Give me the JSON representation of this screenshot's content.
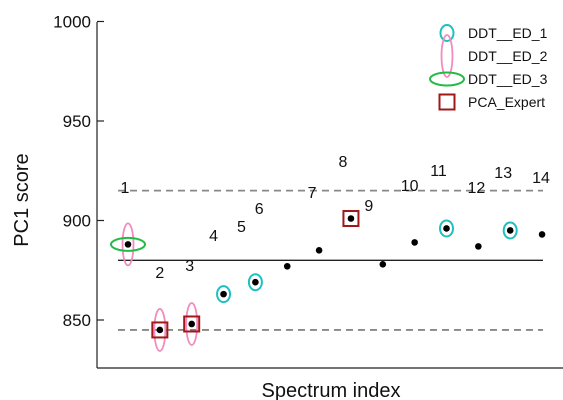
{
  "chart_data": {
    "type": "scatter",
    "xlabel": "Spectrum index",
    "ylabel": "PC1 score",
    "ylim": [
      830,
      1000
    ],
    "y_ticks": [
      "850",
      "900",
      "950",
      "1000"
    ],
    "grid": false,
    "legend_position": "top-right",
    "points": [
      {
        "label": "1",
        "x": 1,
        "y": 888
      },
      {
        "label": "2",
        "x": 2,
        "y": 845
      },
      {
        "label": "3",
        "x": 3,
        "y": 848
      },
      {
        "label": "4",
        "x": 4,
        "y": 863
      },
      {
        "label": "5",
        "x": 5,
        "y": 869
      },
      {
        "label": "6",
        "x": 6,
        "y": 877
      },
      {
        "label": "7",
        "x": 7,
        "y": 885
      },
      {
        "label": "8",
        "x": 8,
        "y": 901
      },
      {
        "label": "9",
        "x": 9,
        "y": 878
      },
      {
        "label": "10",
        "x": 10,
        "y": 889
      },
      {
        "label": "11",
        "x": 11,
        "y": 896
      },
      {
        "label": "12",
        "x": 12,
        "y": 887
      },
      {
        "label": "13",
        "x": 13,
        "y": 895
      },
      {
        "label": "14",
        "x": 14,
        "y": 893
      }
    ],
    "mean_line": 880,
    "upper_limit": 915,
    "lower_limit": 845,
    "series": [
      {
        "name": "DDT__ED_1",
        "marker": "small-circle",
        "color": "#20c0c0",
        "x": [
          4,
          5,
          11,
          13
        ]
      },
      {
        "name": "DDT__ED_2",
        "marker": "tall-ellipse",
        "color": "#f08cc0",
        "x": [
          1,
          2,
          3
        ]
      },
      {
        "name": "DDT__ED_3",
        "marker": "wide-ellipse",
        "color": "#22bb44",
        "x": [
          1
        ]
      },
      {
        "name": "PCA_Expert",
        "marker": "square",
        "color": "#a01818",
        "x": [
          2,
          3,
          8
        ]
      }
    ]
  }
}
